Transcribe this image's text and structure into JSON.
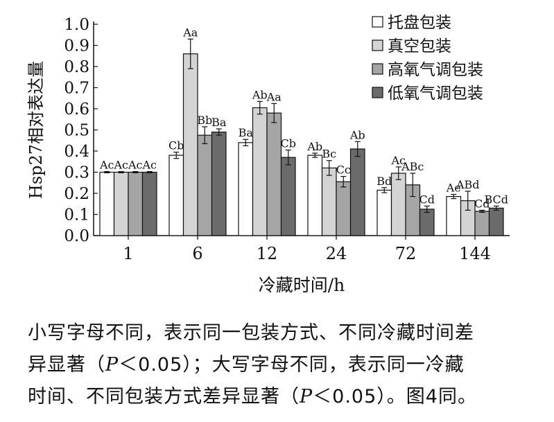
{
  "chart_data": {
    "type": "bar",
    "title": "",
    "xlabel": "冷藏时间/h",
    "ylabel": "Hsp27相对表达量",
    "ylim": [
      0,
      1.0
    ],
    "yticks": [
      "0.0",
      "0.1",
      "0.2",
      "0.3",
      "0.4",
      "0.5",
      "0.6",
      "0.7",
      "0.8",
      "0.9",
      "1.0"
    ],
    "categories": [
      "1",
      "6",
      "12",
      "24",
      "72",
      "144"
    ],
    "legend_position": "top-right",
    "series": [
      {
        "name": "托盘包装",
        "color": "#ffffff",
        "values": [
          0.3,
          0.38,
          0.44,
          0.38,
          0.215,
          0.185
        ],
        "errors": [
          0.003,
          0.015,
          0.015,
          0.01,
          0.012,
          0.01
        ],
        "labels": [
          "Ac",
          "Cb",
          "Ba",
          "Ab",
          "Bd",
          "Ae"
        ]
      },
      {
        "name": "真空包装",
        "color": "#d4d4d4",
        "values": [
          0.3,
          0.86,
          0.605,
          0.32,
          0.295,
          0.165
        ],
        "errors": [
          0.003,
          0.07,
          0.03,
          0.035,
          0.03,
          0.045
        ],
        "labels": [
          "Ac",
          "Aa",
          "Ab",
          "Bc",
          "Ac",
          "ABd"
        ]
      },
      {
        "name": "高氧气调包装",
        "color": "#a5a5a5",
        "values": [
          0.3,
          0.475,
          0.58,
          0.255,
          0.24,
          0.115
        ],
        "errors": [
          0.003,
          0.04,
          0.045,
          0.025,
          0.055,
          0.005
        ],
        "labels": [
          "Ac",
          "Bb",
          "Aa",
          "Cc",
          "ABc",
          "Cd"
        ]
      },
      {
        "name": "低氧气调包装",
        "color": "#6b6b6b",
        "values": [
          0.3,
          0.49,
          0.37,
          0.41,
          0.125,
          0.13
        ],
        "errors": [
          0.003,
          0.015,
          0.035,
          0.035,
          0.015,
          0.01
        ],
        "labels": [
          "Ac",
          "Ba",
          "Cb",
          "Ab",
          "Cd",
          "BCd"
        ]
      }
    ]
  },
  "caption": {
    "line1": "小写字母不同，表示同一包装方式、不同冷藏时间差",
    "line2_a": "异显著（",
    "line2_p": "P",
    "line2_b": "＜0.05）；大写字母不同，表示同一冷藏",
    "line3_a": "时间、不同包装方式差异显著（",
    "line3_p": "P",
    "line3_b": "＜0.05）。图4同。"
  }
}
